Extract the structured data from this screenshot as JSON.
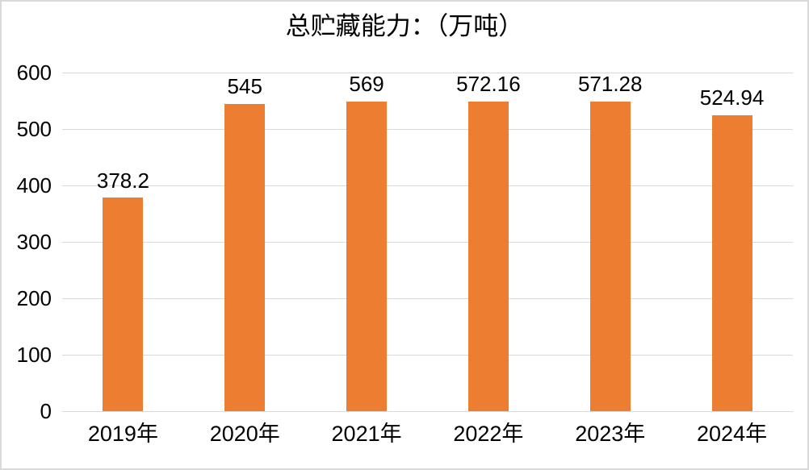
{
  "chart_data": {
    "type": "bar",
    "title": "总贮藏能力：（万吨）",
    "categories": [
      "2019年",
      "2020年",
      "2021年",
      "2022年",
      "2023年",
      "2024年"
    ],
    "values": [
      378.2,
      545,
      569,
      572.16,
      571.28,
      524.94
    ],
    "data_labels": [
      "378.2",
      "545",
      "569",
      "572.16",
      "571.28",
      "524.94"
    ],
    "xlabel": "",
    "ylabel": "",
    "ylim": [
      0,
      600
    ],
    "yticks": [
      0,
      100,
      200,
      300,
      400,
      500,
      600
    ],
    "grid": true,
    "legend": false,
    "bar_color": "#ED7D31",
    "gridline_color": "#D9D9D9",
    "border_color": "#D9D9D9",
    "text_color": "#000000"
  }
}
